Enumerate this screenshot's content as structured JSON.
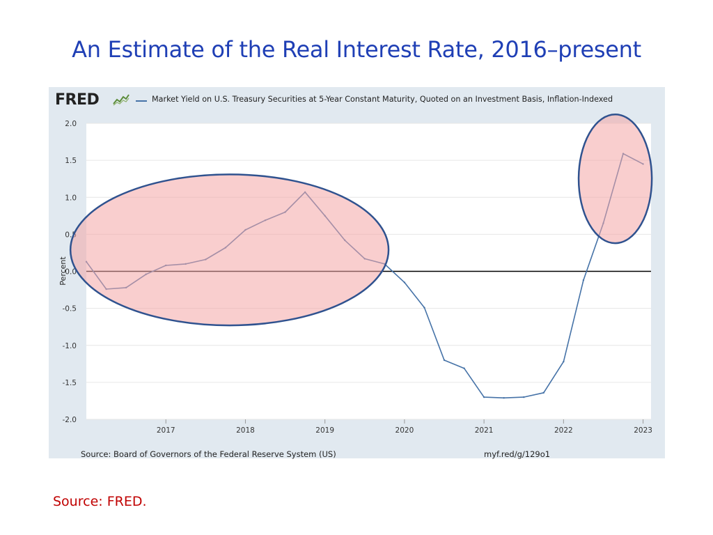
{
  "slide": {
    "title": "An Estimate of the Real Interest Rate, 2016–present",
    "source_note": "Source:  FRED."
  },
  "fred": {
    "logo_text": "FRED",
    "logo_icon": "line-graph-icon",
    "footer_source": "Source: Board of Governors of the Federal Reserve System (US)",
    "footer_url": "myf.red/g/129o1"
  },
  "colors": {
    "title": "#1f3fb5",
    "series": "#4572a7",
    "highlight_fill": "#f4a6a6",
    "highlight_stroke": "#2f528f",
    "zero_line": "#000000",
    "slide_source": "#c00000",
    "plot_background": "#ffffff",
    "frame_background": "#e1e9f0"
  },
  "chart_data": {
    "type": "line",
    "title": "",
    "xlabel": "",
    "ylabel": "Percent",
    "ylim": [
      -2.0,
      2.0
    ],
    "xlim": [
      2016.0,
      2023.1
    ],
    "y_ticks": [
      "2.0",
      "1.5",
      "1.0",
      "0.5",
      "0.0",
      "-0.5",
      "-1.0",
      "-1.5",
      "-2.0"
    ],
    "y_tick_values": [
      2.0,
      1.5,
      1.0,
      0.5,
      0.0,
      -0.5,
      -1.0,
      -1.5,
      -2.0
    ],
    "x_ticks": [
      "2017",
      "2018",
      "2019",
      "2020",
      "2021",
      "2022",
      "2023"
    ],
    "x_tick_values": [
      2017,
      2018,
      2019,
      2020,
      2021,
      2022,
      2023
    ],
    "grid": true,
    "zero_line": true,
    "series": [
      {
        "name": "Market Yield on U.S. Treasury Securities at 5-Year Constant Maturity, Quoted on an Investment Basis, Inflation-Indexed",
        "x": [
          2016.0,
          2016.25,
          2016.5,
          2016.75,
          2017.0,
          2017.25,
          2017.5,
          2017.75,
          2018.0,
          2018.25,
          2018.5,
          2018.75,
          2019.0,
          2019.25,
          2019.5,
          2019.75,
          2020.0,
          2020.25,
          2020.5,
          2020.75,
          2021.0,
          2021.25,
          2021.5,
          2021.75,
          2022.0,
          2022.25,
          2022.5,
          2022.75,
          2023.0
        ],
        "values": [
          0.13,
          -0.24,
          -0.22,
          -0.04,
          0.08,
          0.1,
          0.16,
          0.32,
          0.56,
          0.69,
          0.8,
          1.07,
          0.75,
          0.42,
          0.17,
          0.1,
          -0.15,
          -0.49,
          -1.2,
          -1.31,
          -1.7,
          -1.71,
          -1.7,
          -1.64,
          -1.22,
          -0.12,
          0.65,
          1.59,
          1.45
        ]
      }
    ],
    "annotations": [
      {
        "type": "ellipse",
        "label": "highlight-2016-2019",
        "center": [
          2017.8,
          0.29
        ],
        "radius_x": 2.0,
        "radius_y": 1.02
      },
      {
        "type": "ellipse",
        "label": "highlight-2022-2023",
        "center": [
          2022.65,
          1.25
        ],
        "radius_x": 0.46,
        "radius_y": 0.87
      }
    ],
    "source": "Source: Board of Governors of the Federal Reserve System (US)"
  }
}
